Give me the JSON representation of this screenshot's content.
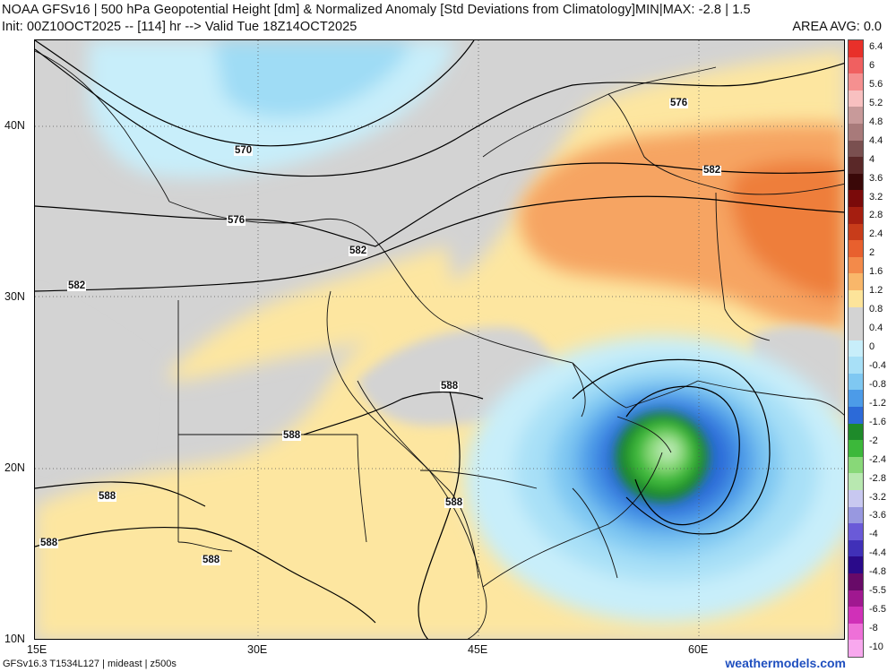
{
  "header": {
    "line1": "NOAA GFSv16 | 500 hPa Geopotential Height [dm] & Normalized Anomaly [Std Deviations from Climatology]MIN|MAX: -2.8 | 1.5",
    "line2": "Init: 00Z10OCT2025 -- [114] hr --> Valid Tue 18Z14OCT2025",
    "area_avg": "AREA AVG: 0.0"
  },
  "footer": {
    "model_info": "GFSv16.3 T1534L127 | mideast | z500s",
    "brand": "weathermodels.com"
  },
  "map": {
    "lon_range": [
      15,
      70
    ],
    "lat_range": [
      10,
      45
    ],
    "lon_ticks": [
      "15E",
      "30E",
      "45E",
      "60E"
    ],
    "lat_ticks": [
      "10N",
      "20N",
      "30N",
      "40N"
    ],
    "contour_labels": [
      "570",
      "576",
      "576",
      "582",
      "582",
      "582",
      "588",
      "588",
      "588",
      "588",
      "588",
      "588"
    ]
  },
  "colorbar": {
    "labels": [
      "6.4",
      "6",
      "5.6",
      "5.2",
      "4.8",
      "4.4",
      "4",
      "3.6",
      "3.2",
      "2.8",
      "2.4",
      "2",
      "1.6",
      "1.2",
      "0.8",
      "0.4",
      "0",
      "-0.4",
      "-0.8",
      "-1.2",
      "-1.6",
      "-2",
      "-2.4",
      "-2.8",
      "-3.2",
      "-3.6",
      "-4",
      "-4.4",
      "-4.8",
      "-5.5",
      "-6.5",
      "-8",
      "-10"
    ],
    "colors": [
      "#e8302a",
      "#f06060",
      "#f59090",
      "#f8c0c0",
      "#c89a9a",
      "#a87a7a",
      "#7a5050",
      "#5a2828",
      "#3a0808",
      "#7a0a0a",
      "#a51e10",
      "#c83c1a",
      "#e8602e",
      "#f38a4a",
      "#f9b76a",
      "#fde49a",
      "#d3d3d3",
      "#d3d3d3",
      "#c8eefa",
      "#a8e0f7",
      "#7fc8f2",
      "#4c9be8",
      "#2c6ad8",
      "#1e8a2a",
      "#3cb83a",
      "#88d878",
      "#b8e8b0",
      "#c8c8f0",
      "#9898e0",
      "#6a5ad8",
      "#4030b8",
      "#2a0a8a",
      "#680a68",
      "#a01890",
      "#d030b8",
      "#ee70d8",
      "#f8a8ee"
    ]
  }
}
